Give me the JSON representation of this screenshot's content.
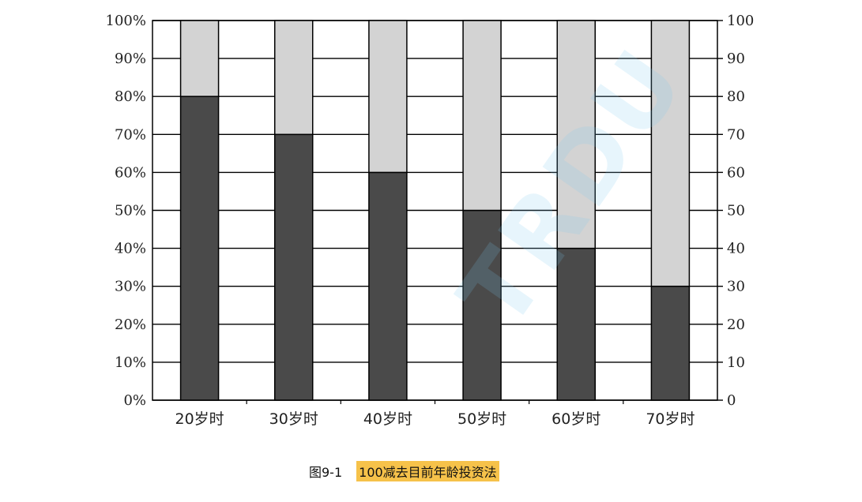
{
  "chart_data": {
    "type": "bar",
    "stacked": true,
    "categories": [
      "20岁时",
      "30岁时",
      "40岁时",
      "50岁时",
      "60岁时",
      "70岁时"
    ],
    "series": [
      {
        "values": [
          80,
          70,
          60,
          50,
          40,
          30
        ],
        "color": "#4a4a4a"
      },
      {
        "values": [
          20,
          30,
          40,
          50,
          60,
          70
        ],
        "color": "#d3d3d3"
      }
    ],
    "ylim": [
      0,
      100
    ],
    "y_ticks_left": [
      "0%",
      "10%",
      "20%",
      "30%",
      "40%",
      "50%",
      "60%",
      "70%",
      "80%",
      "90%",
      "100%"
    ],
    "y_ticks_right": [
      "0",
      "10",
      "20",
      "30",
      "40",
      "50",
      "60",
      "70",
      "80",
      "90",
      "100"
    ],
    "grid": true
  },
  "caption": {
    "figure_number": "图9-1",
    "title": "100减去目前年龄投资法"
  },
  "watermark": "TRDU"
}
